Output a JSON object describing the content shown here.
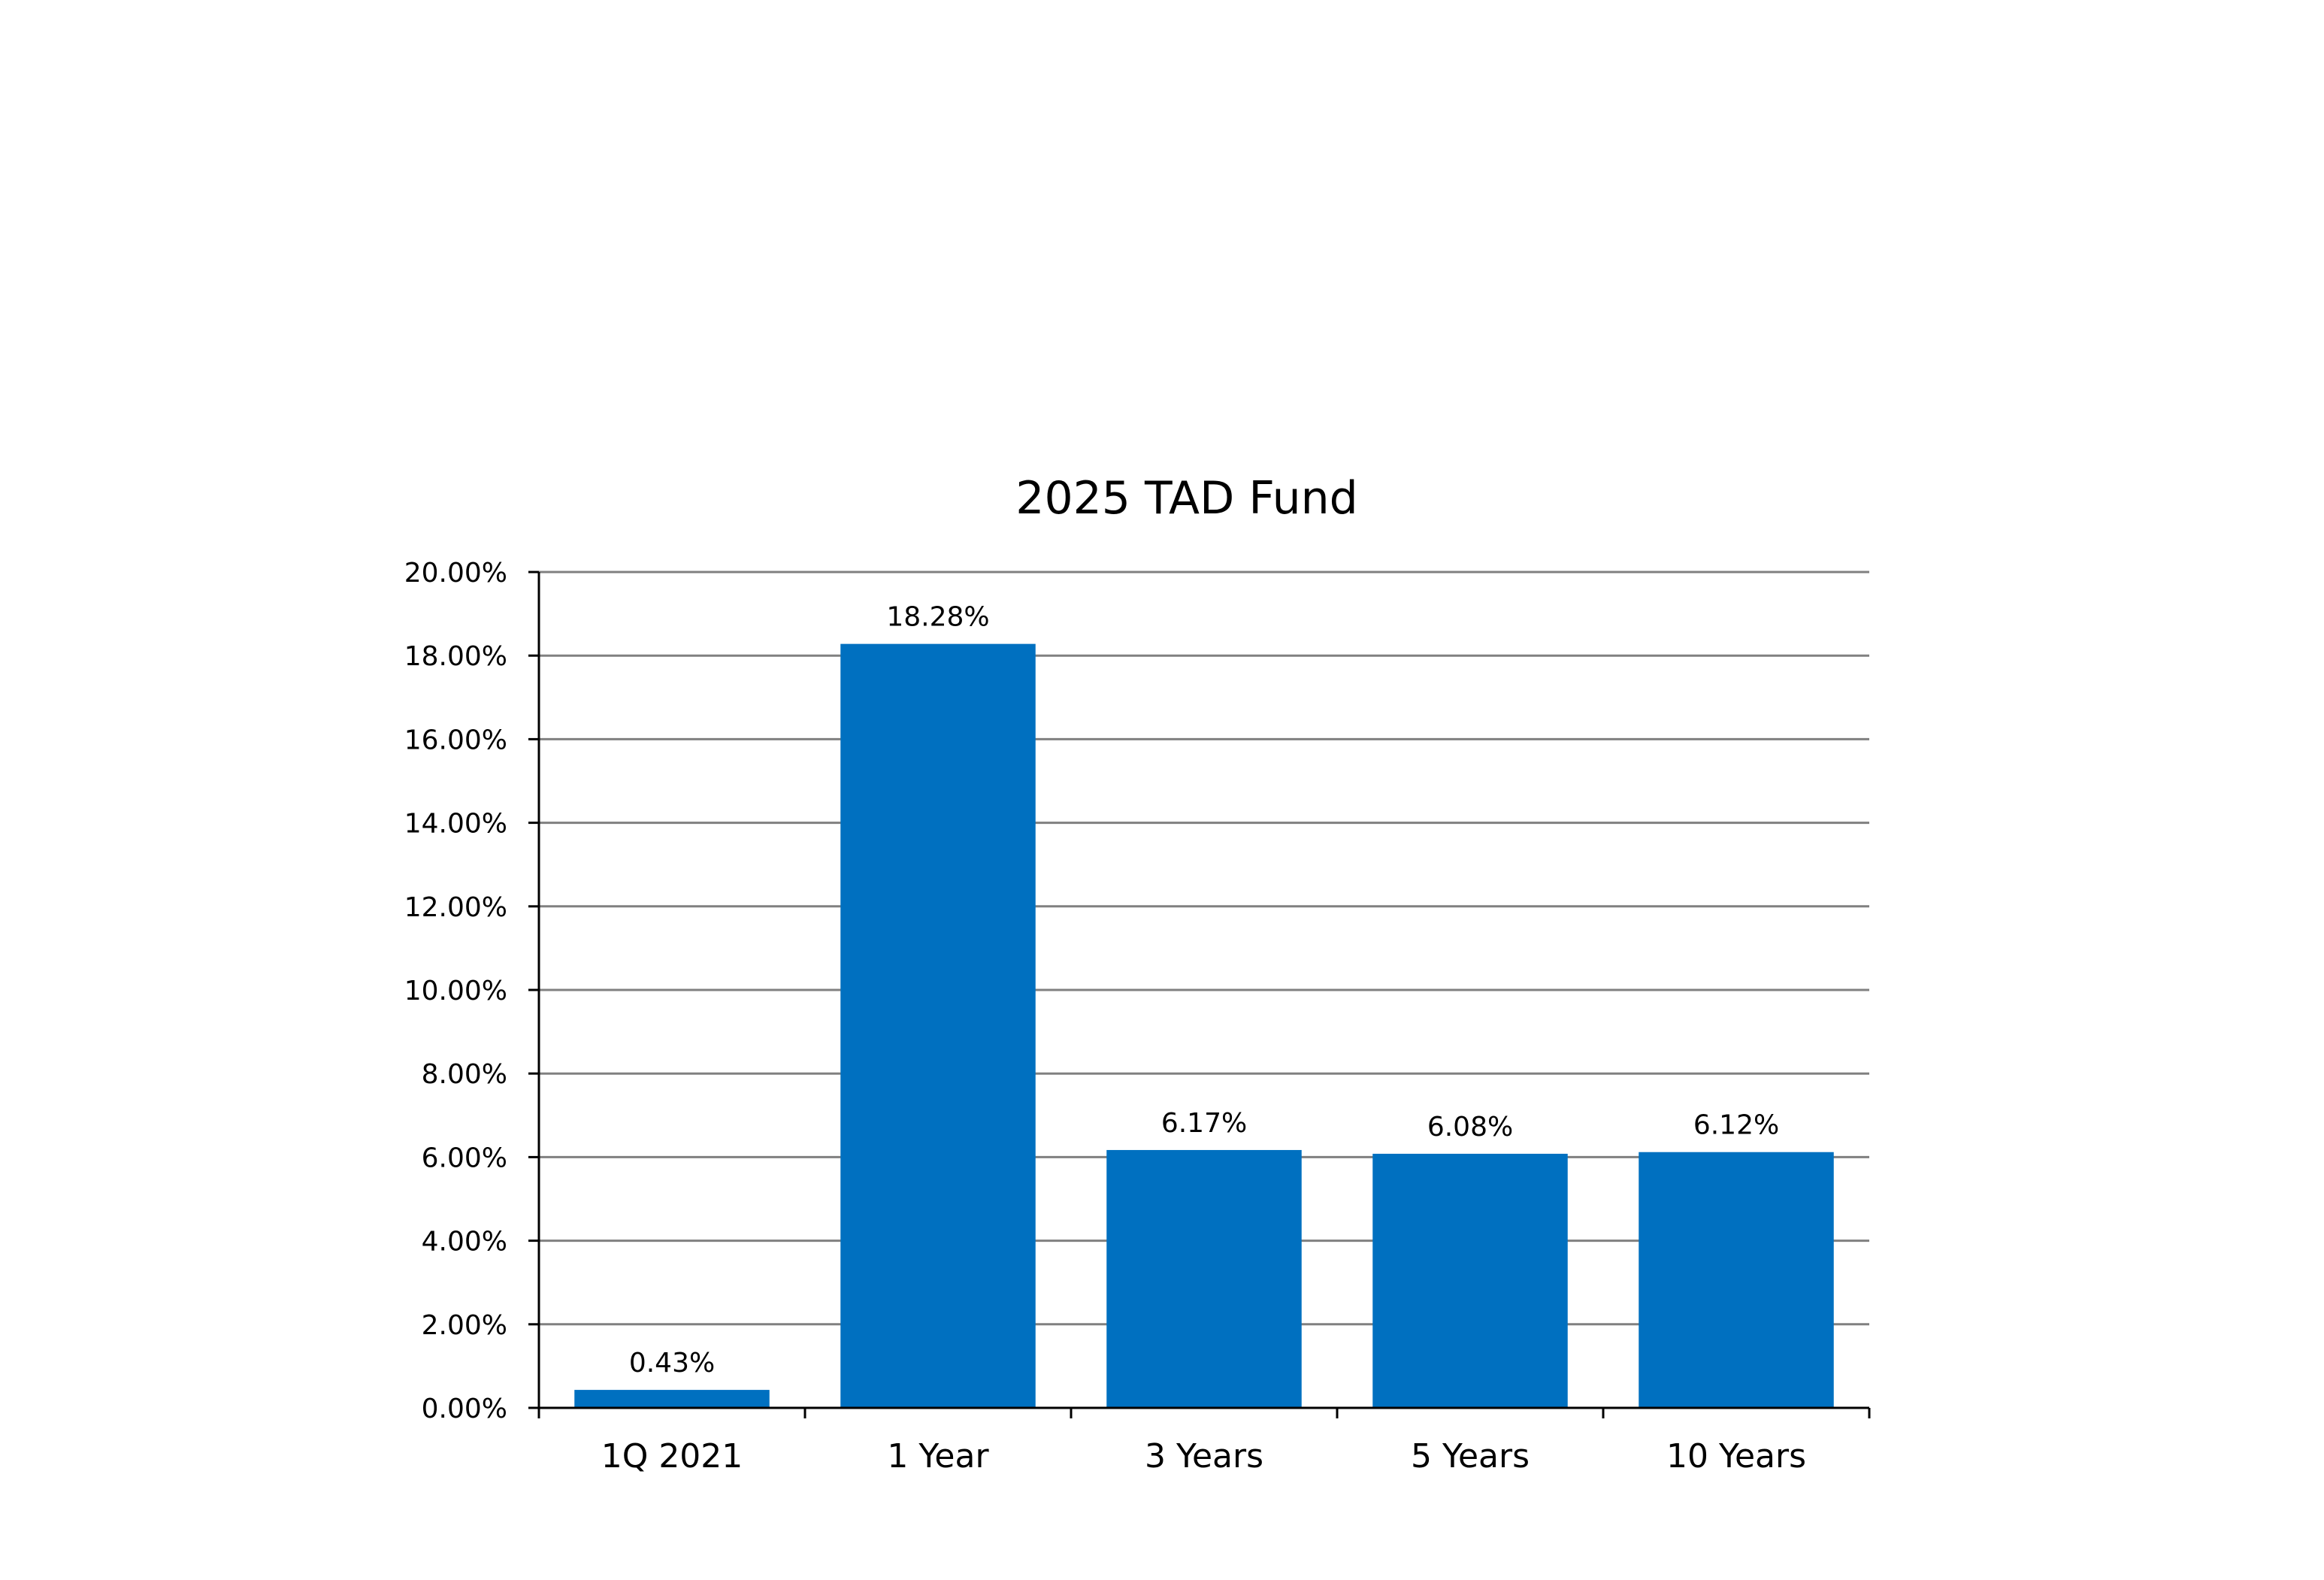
{
  "chart_data": {
    "type": "bar",
    "title": "2025 TAD Fund",
    "xlabel": "",
    "ylabel": "",
    "categories": [
      "1Q 2021",
      "1 Year",
      "3 Years",
      "5 Years",
      "10 Years"
    ],
    "values": [
      0.43,
      18.28,
      6.17,
      6.08,
      6.12
    ],
    "value_labels": [
      "0.43%",
      "18.28%",
      "6.17%",
      "6.08%",
      "6.12%"
    ],
    "ylim": [
      0,
      20
    ],
    "yticks": [
      0,
      2,
      4,
      6,
      8,
      10,
      12,
      14,
      16,
      18,
      20
    ],
    "ytick_labels": [
      "0.00%",
      "2.00%",
      "4.00%",
      "6.00%",
      "8.00%",
      "10.00%",
      "12.00%",
      "14.00%",
      "16.00%",
      "18.00%",
      "20.00%"
    ],
    "grid": true,
    "legend": "none",
    "colors": {
      "bar": "#0070C0",
      "grid": "#808080",
      "axis": "#000000"
    }
  }
}
